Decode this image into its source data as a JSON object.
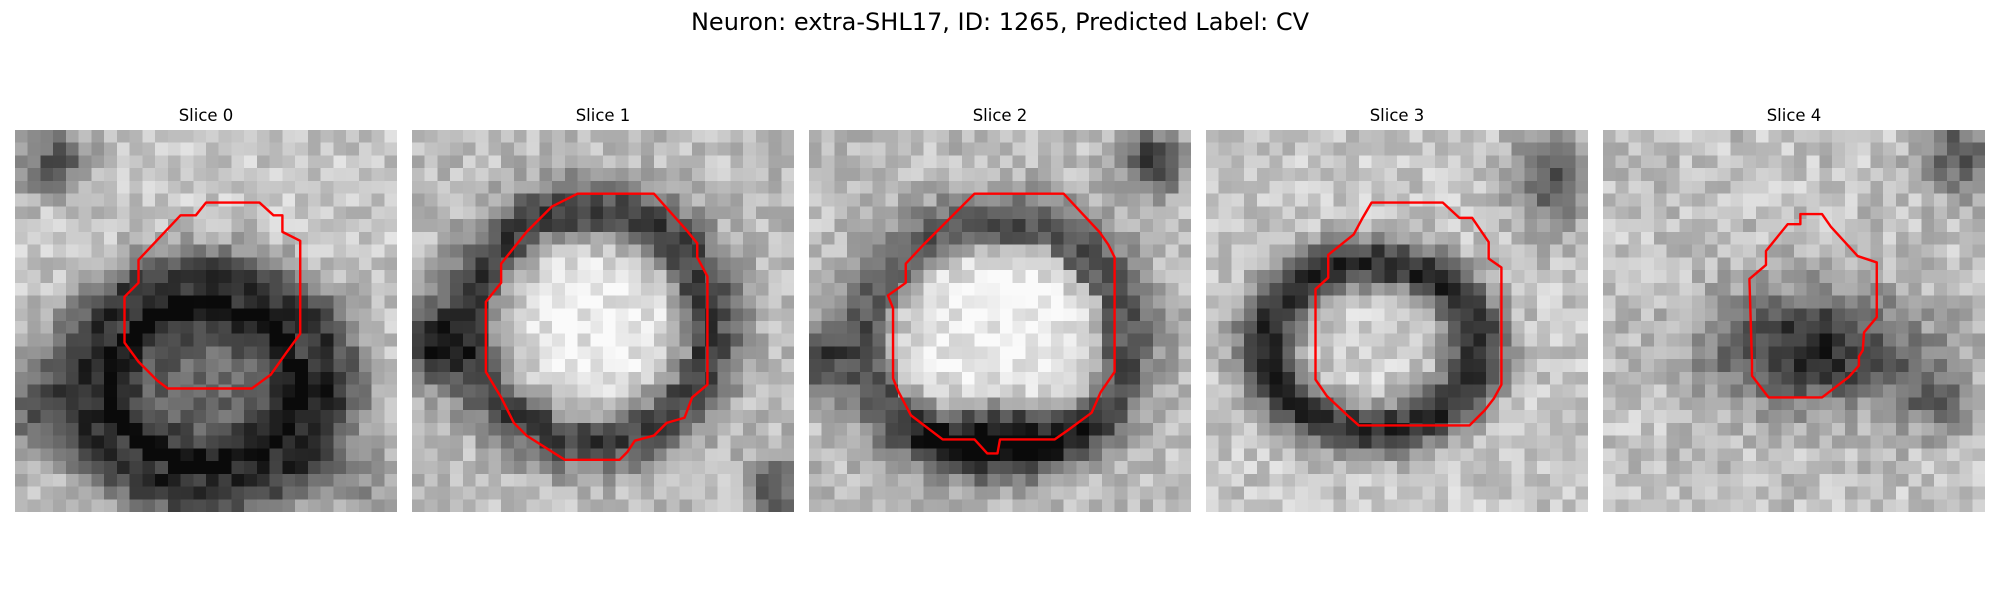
{
  "figure": {
    "title": "Neuron: extra-SHL17, ID: 1265, Predicted Label: CV"
  },
  "panels": [
    {
      "title": "Slice 0",
      "image_desc": "grayscale_patch_dark_ring_center_left",
      "contour": "red_outline"
    },
    {
      "title": "Slice 1",
      "image_desc": "grayscale_patch_bright_blob_dark_rim",
      "contour": "red_outline"
    },
    {
      "title": "Slice 2",
      "image_desc": "grayscale_patch_bright_blob_dark_bottom",
      "contour": "red_outline"
    },
    {
      "title": "Slice 3",
      "image_desc": "grayscale_patch_bright_blob_dark_ring",
      "contour": "red_outline"
    },
    {
      "title": "Slice 4",
      "image_desc": "grayscale_patch_dark_blob",
      "contour": "red_outline"
    }
  ],
  "colors": {
    "contour": "#ff0000",
    "background": "#ffffff"
  }
}
